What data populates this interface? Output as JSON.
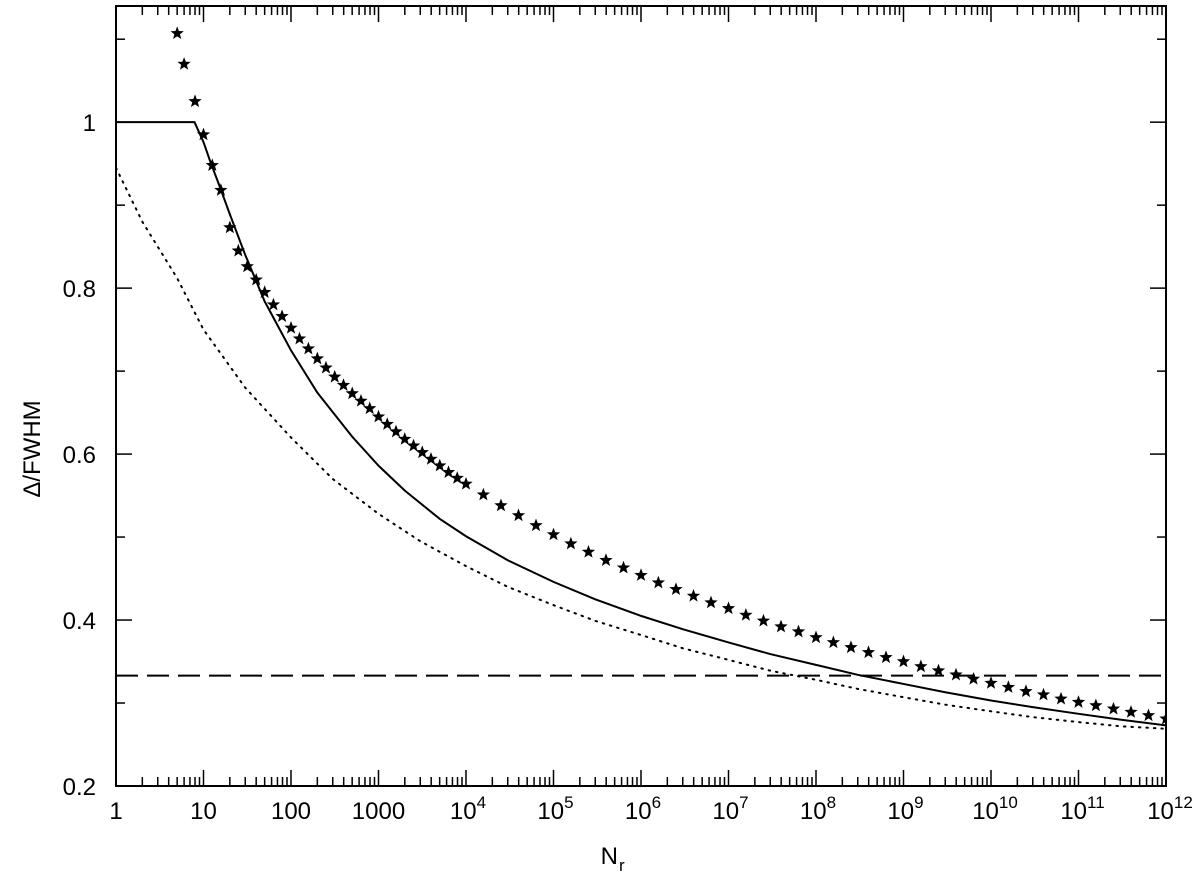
{
  "chart_data": {
    "type": "line",
    "title": "",
    "xlabel": "N",
    "xlabel_subscript": "r",
    "ylabel": "Δ/FWHM",
    "x_scale": "log",
    "xlim": [
      1,
      1000000000000.0
    ],
    "ylim": [
      0.2,
      1.14
    ],
    "grid": false,
    "legend": "none",
    "x_ticks": [
      {
        "value": 1,
        "label": "1"
      },
      {
        "value": 10,
        "label": "10"
      },
      {
        "value": 100,
        "label": "100"
      },
      {
        "value": 1000,
        "label": "1000"
      },
      {
        "value": 10000.0,
        "label": "10",
        "exp": "4"
      },
      {
        "value": 100000.0,
        "label": "10",
        "exp": "5"
      },
      {
        "value": 1000000.0,
        "label": "10",
        "exp": "6"
      },
      {
        "value": 10000000.0,
        "label": "10",
        "exp": "7"
      },
      {
        "value": 100000000.0,
        "label": "10",
        "exp": "8"
      },
      {
        "value": 1000000000.0,
        "label": "10",
        "exp": "9"
      },
      {
        "value": 10000000000.0,
        "label": "10",
        "exp": "10"
      },
      {
        "value": 100000000000.0,
        "label": "10",
        "exp": "11"
      },
      {
        "value": 1000000000000.0,
        "label": "10",
        "exp": "12"
      }
    ],
    "y_ticks": [
      {
        "value": 0.2,
        "label": "0.2"
      },
      {
        "value": 0.4,
        "label": "0.4"
      },
      {
        "value": 0.6,
        "label": "0.6"
      },
      {
        "value": 0.8,
        "label": "0.8"
      },
      {
        "value": 1.0,
        "label": "1"
      }
    ],
    "y_minor_ticks": [
      0.3,
      0.5,
      0.7,
      0.9,
      1.1
    ],
    "series": [
      {
        "style": "solid",
        "x": [
          1,
          2,
          4,
          7.9,
          10,
          12,
          15,
          20,
          30,
          50,
          100,
          200,
          500,
          1000,
          2000,
          5000,
          10000.0,
          30000.0,
          100000.0,
          300000.0,
          1000000.0,
          3000000.0,
          10000000.0,
          30000000.0,
          100000000.0,
          300000000.0,
          1000000000.0,
          3000000000.0,
          10000000000.0,
          30000000000.0,
          100000000000.0,
          300000000000.0,
          1000000000000.0
        ],
        "y": [
          1.0,
          1.0,
          1.0,
          1.0,
          0.976,
          0.952,
          0.925,
          0.889,
          0.84,
          0.784,
          0.725,
          0.674,
          0.621,
          0.586,
          0.556,
          0.522,
          0.501,
          0.472,
          0.446,
          0.425,
          0.405,
          0.389,
          0.373,
          0.359,
          0.346,
          0.334,
          0.323,
          0.313,
          0.303,
          0.295,
          0.287,
          0.28,
          0.273
        ]
      },
      {
        "style": "stars",
        "x": [
          5,
          6,
          8,
          10,
          12.6,
          15.8,
          20,
          25,
          31.6,
          40,
          50,
          63,
          79,
          100,
          125,
          158,
          200,
          251,
          316,
          398,
          501,
          631,
          794,
          1000,
          1259,
          1585,
          1995,
          2512,
          3162,
          3981,
          5012,
          6310,
          7943,
          10000.0,
          15800.0,
          25100.0,
          39800.0,
          63100.0,
          100000.0,
          158000.0,
          251000.0,
          398000.0,
          631000.0,
          1000000.0,
          1580000.0,
          2510000.0,
          3980000.0,
          6310000.0,
          10000000.0,
          15800000.0,
          25100000.0,
          39800000.0,
          63100000.0,
          100000000.0,
          158000000.0,
          251000000.0,
          398000000.0,
          631000000.0,
          1000000000.0,
          1580000000.0,
          2510000000.0,
          3980000000.0,
          6310000000.0,
          10000000000.0,
          15800000000.0,
          25100000000.0,
          39800000000.0,
          63100000000.0,
          100000000000.0,
          158000000000.0,
          251000000000.0,
          398000000000.0,
          631000000000.0,
          1000000000000.0
        ],
        "y": [
          1.107,
          1.07,
          1.025,
          0.985,
          0.948,
          0.918,
          0.873,
          0.845,
          0.826,
          0.81,
          0.795,
          0.78,
          0.766,
          0.752,
          0.739,
          0.727,
          0.715,
          0.704,
          0.693,
          0.683,
          0.673,
          0.664,
          0.655,
          0.645,
          0.636,
          0.627,
          0.618,
          0.61,
          0.602,
          0.594,
          0.586,
          0.578,
          0.571,
          0.564,
          0.551,
          0.538,
          0.526,
          0.514,
          0.503,
          0.492,
          0.482,
          0.472,
          0.463,
          0.454,
          0.445,
          0.437,
          0.429,
          0.421,
          0.414,
          0.406,
          0.399,
          0.392,
          0.386,
          0.379,
          0.373,
          0.367,
          0.361,
          0.355,
          0.35,
          0.344,
          0.339,
          0.334,
          0.329,
          0.324,
          0.319,
          0.314,
          0.31,
          0.305,
          0.301,
          0.297,
          0.293,
          0.289,
          0.285,
          0.281
        ]
      },
      {
        "style": "dotted",
        "x": [
          1,
          2,
          5,
          10,
          30,
          100,
          300,
          1000,
          3000,
          10000.0,
          30000.0,
          100000.0,
          300000.0,
          1000000.0,
          3000000.0,
          10000000.0,
          30000000.0,
          100000000.0,
          300000000.0,
          1000000000.0,
          3000000000.0,
          10000000000.0,
          30000000000.0,
          100000000000.0,
          300000000000.0,
          1000000000000.0
        ],
        "y": [
          0.945,
          0.88,
          0.812,
          0.75,
          0.68,
          0.62,
          0.57,
          0.528,
          0.495,
          0.465,
          0.44,
          0.418,
          0.399,
          0.382,
          0.366,
          0.352,
          0.339,
          0.328,
          0.317,
          0.307,
          0.298,
          0.29,
          0.283,
          0.277,
          0.272,
          0.269
        ]
      },
      {
        "style": "dashed",
        "x": [
          1,
          1000000000000.0
        ],
        "y": [
          0.333,
          0.333
        ]
      }
    ]
  }
}
